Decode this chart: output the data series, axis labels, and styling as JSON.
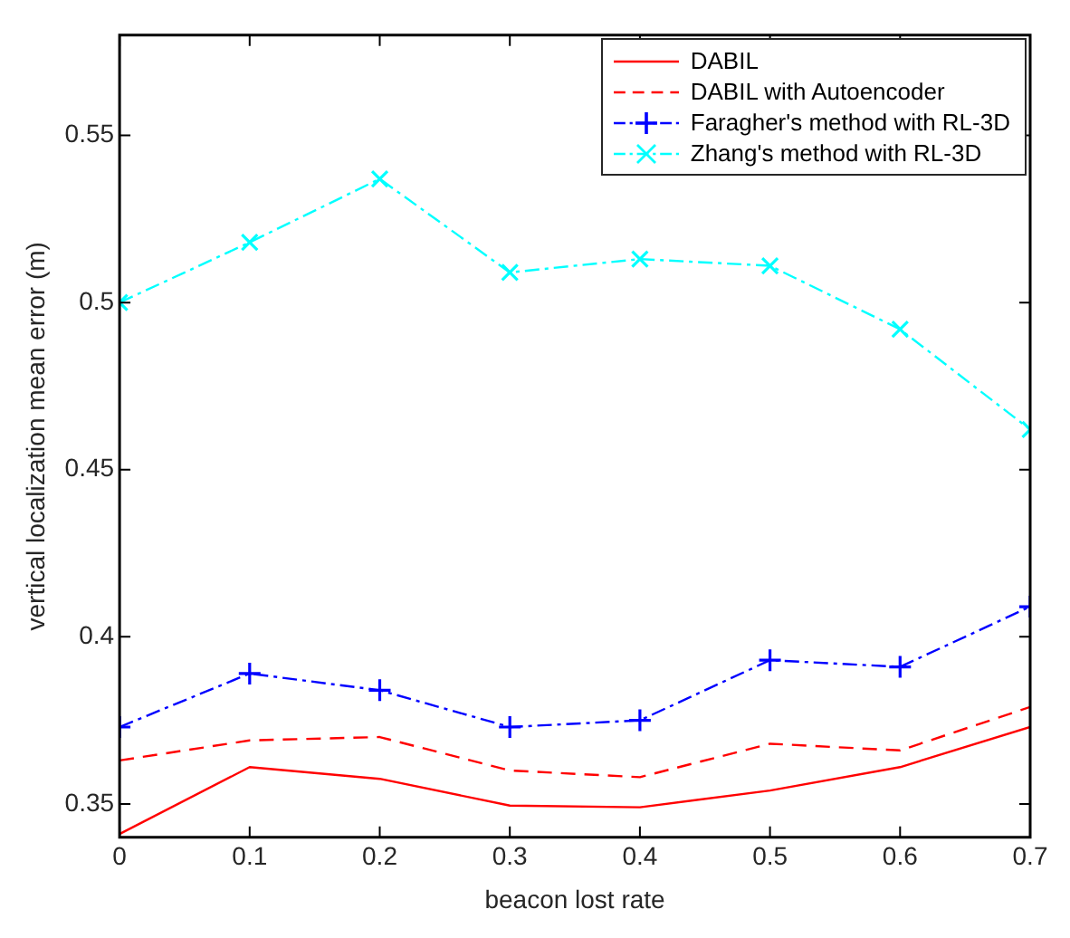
{
  "chart_data": {
    "type": "line",
    "xlabel": "beacon lost rate",
    "ylabel": "vertical localization mean error (m)",
    "x": [
      0,
      0.1,
      0.2,
      0.3,
      0.4,
      0.5,
      0.6,
      0.7
    ],
    "xlim": [
      0,
      0.7
    ],
    "xticks": [
      0,
      0.1,
      0.2,
      0.3,
      0.4,
      0.5,
      0.6,
      0.7
    ],
    "ylim": [
      0.34,
      0.58
    ],
    "yticks": [
      0.35,
      0.4,
      0.45,
      0.5,
      0.55
    ],
    "grid": false,
    "legend": "top right",
    "series": [
      {
        "name": "DABIL",
        "color": "#ff0000",
        "line_style": "solid",
        "marker": "none",
        "values": [
          0.341,
          0.361,
          0.3575,
          0.3495,
          0.349,
          0.354,
          0.361,
          0.373
        ]
      },
      {
        "name": "DABIL with Autoencoder",
        "color": "#ff0000",
        "line_style": "dashed",
        "marker": "none",
        "values": [
          0.363,
          0.369,
          0.37,
          0.36,
          0.358,
          0.368,
          0.366,
          0.379
        ]
      },
      {
        "name": "Faragher's method with RL-3D",
        "color": "#0000ff",
        "line_style": "dashdot",
        "marker": "cross",
        "values": [
          0.373,
          0.389,
          0.384,
          0.373,
          0.375,
          0.393,
          0.391,
          0.409
        ]
      },
      {
        "name": "Zhang's method with RL-3D",
        "color": "#00ffff",
        "line_style": "dashdot",
        "marker": "x",
        "values": [
          0.5,
          0.518,
          0.537,
          0.509,
          0.513,
          0.511,
          0.492,
          0.462
        ]
      }
    ]
  }
}
